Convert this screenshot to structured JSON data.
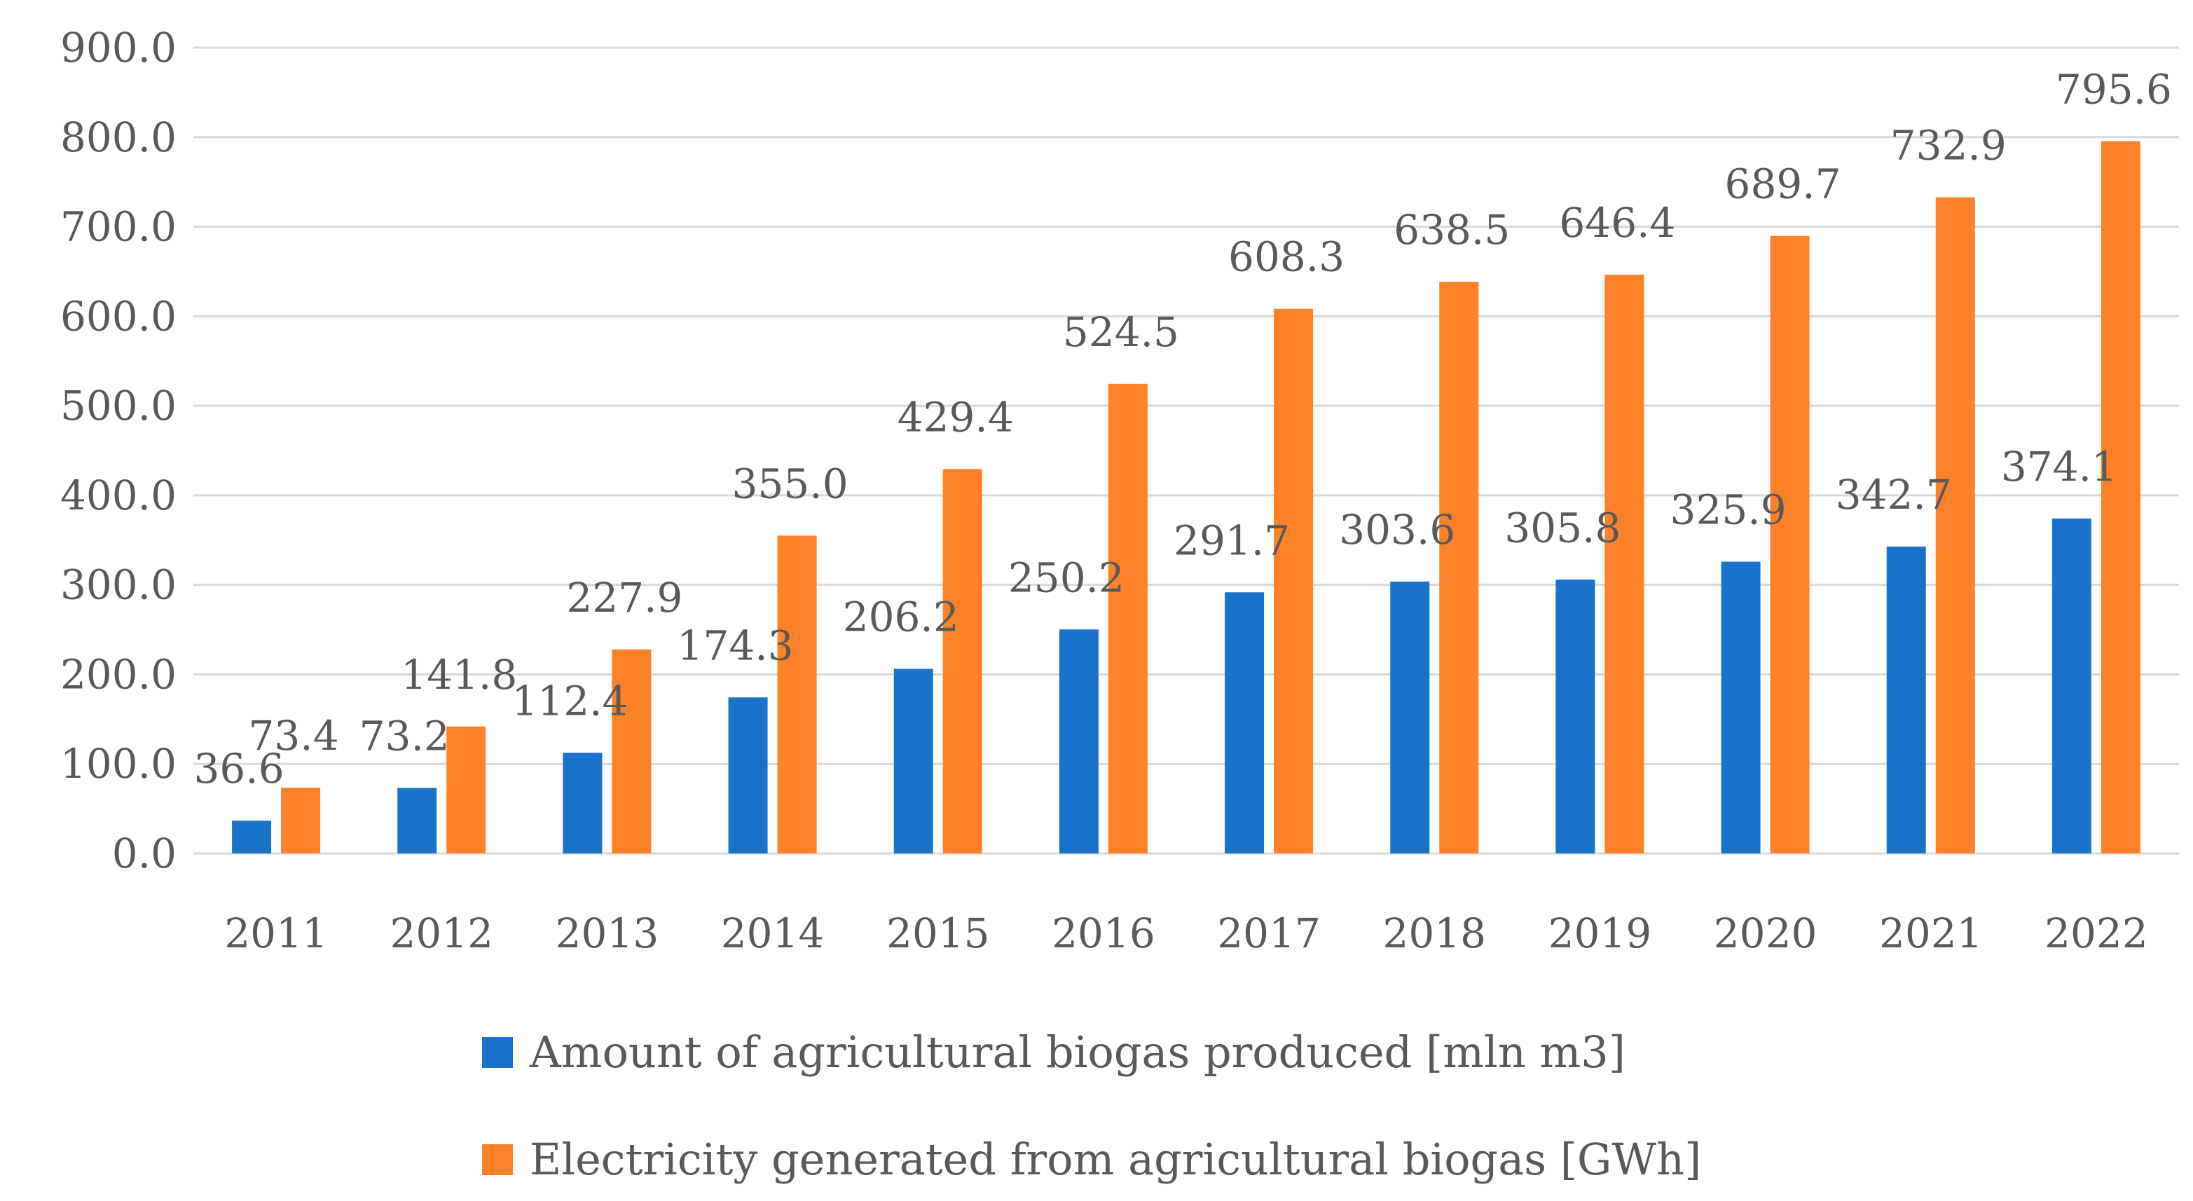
{
  "chart_data": {
    "type": "bar",
    "title": "",
    "xlabel": "",
    "ylabel": "",
    "ylim": [
      0,
      900
    ],
    "ytick_step": 100,
    "ytick_labels": [
      "0.0",
      "100.0",
      "200.0",
      "300.0",
      "400.0",
      "500.0",
      "600.0",
      "700.0",
      "800.0",
      "900.0"
    ],
    "grid": true,
    "legend_position": "bottom",
    "categories": [
      "2011",
      "2012",
      "2013",
      "2014",
      "2015",
      "2016",
      "2017",
      "2018",
      "2019",
      "2020",
      "2021",
      "2022"
    ],
    "series": [
      {
        "name": "Amount of agricultural biogas produced [mln m3]",
        "color": "#1a73cb",
        "values": [
          36.6,
          73.2,
          112.4,
          174.3,
          206.2,
          250.2,
          291.7,
          303.6,
          305.8,
          325.9,
          342.7,
          374.1
        ],
        "labels": [
          "36.6",
          "73.2",
          "112.4",
          "174.3",
          "206.2",
          "250.2",
          "291.7",
          "303.6",
          "305.8",
          "325.9",
          "342.7",
          "374.1"
        ]
      },
      {
        "name": "Electricity generated from agricultural biogas [GWh]",
        "color": "#fd8128",
        "values": [
          73.4,
          141.8,
          227.9,
          355.0,
          429.4,
          524.5,
          608.3,
          638.5,
          646.4,
          689.7,
          732.9,
          795.6
        ],
        "labels": [
          "73.4",
          "141.8",
          "227.9",
          "355.0",
          "429.4",
          "524.5",
          "608.3",
          "638.5",
          "646.4",
          "689.7",
          "732.9",
          "795.6"
        ]
      }
    ]
  }
}
